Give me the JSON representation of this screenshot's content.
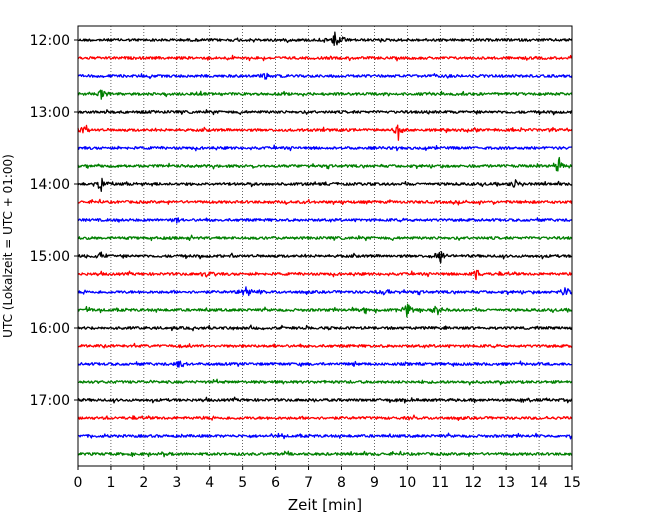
{
  "chart_data": {
    "type": "line",
    "title": "",
    "xlabel": "Zeit  [min]",
    "ylabel": "UTC (Lokalzeit = UTC + 01:00)",
    "xlim": [
      0,
      15
    ],
    "x_ticks": [
      "0",
      "1",
      "2",
      "3",
      "4",
      "5",
      "6",
      "7",
      "8",
      "9",
      "10",
      "11",
      "12",
      "13",
      "14",
      "15"
    ],
    "y_tick_labels": [
      "12:00",
      "13:00",
      "14:00",
      "15:00",
      "16:00",
      "17:00"
    ],
    "grid": "vertical dotted",
    "row_colors": [
      "#000000",
      "#ff0000",
      "#0000ff",
      "#008000"
    ],
    "rows": [
      {
        "start": "12:00",
        "events": [
          {
            "t": 7.85,
            "amp": 12
          }
        ]
      },
      {
        "start": "12:15",
        "events": []
      },
      {
        "start": "12:30",
        "events": [
          {
            "t": 5.7,
            "amp": 4
          }
        ]
      },
      {
        "start": "12:45",
        "events": [
          {
            "t": 0.7,
            "amp": 6
          }
        ]
      },
      {
        "start": "13:00",
        "events": []
      },
      {
        "start": "13:15",
        "events": [
          {
            "t": 0.15,
            "amp": 6
          },
          {
            "t": 9.7,
            "amp": 10
          }
        ]
      },
      {
        "start": "13:30",
        "events": []
      },
      {
        "start": "13:45",
        "events": [
          {
            "t": 14.6,
            "amp": 11
          }
        ]
      },
      {
        "start": "14:00",
        "events": [
          {
            "t": 0.7,
            "amp": 8
          },
          {
            "t": 1.8,
            "amp": 3
          },
          {
            "t": 13.3,
            "amp": 6
          }
        ]
      },
      {
        "start": "14:15",
        "events": []
      },
      {
        "start": "14:30",
        "events": [
          {
            "t": 3.0,
            "amp": 4
          }
        ]
      },
      {
        "start": "14:45",
        "events": []
      },
      {
        "start": "15:00",
        "events": [
          {
            "t": 0.7,
            "amp": 4
          },
          {
            "t": 11.0,
            "amp": 9
          }
        ]
      },
      {
        "start": "15:15",
        "events": [
          {
            "t": 4.0,
            "amp": 4
          },
          {
            "t": 12.1,
            "amp": 6
          }
        ]
      },
      {
        "start": "15:30",
        "events": [
          {
            "t": 5.1,
            "amp": 6
          },
          {
            "t": 5.4,
            "amp": 5
          },
          {
            "t": 9.3,
            "amp": 5
          },
          {
            "t": 14.8,
            "amp": 6
          }
        ]
      },
      {
        "start": "15:45",
        "events": [
          {
            "t": 0.3,
            "amp": 4
          },
          {
            "t": 8.7,
            "amp": 6
          },
          {
            "t": 10.0,
            "amp": 9
          },
          {
            "t": 10.9,
            "amp": 6
          }
        ]
      },
      {
        "start": "16:00",
        "events": []
      },
      {
        "start": "16:15",
        "events": []
      },
      {
        "start": "16:30",
        "events": [
          {
            "t": 3.15,
            "amp": 5
          }
        ]
      },
      {
        "start": "16:45",
        "events": []
      },
      {
        "start": "17:00",
        "events": []
      },
      {
        "start": "17:15",
        "events": []
      },
      {
        "start": "17:30",
        "events": []
      },
      {
        "start": "17:45",
        "events": []
      }
    ]
  }
}
